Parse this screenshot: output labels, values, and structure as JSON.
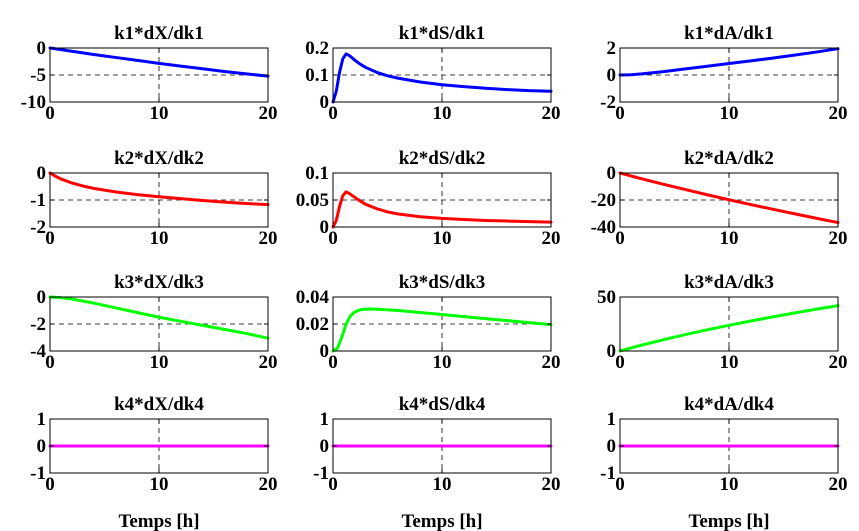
{
  "figure": {
    "x_labels": [
      "Temps [h]",
      "Temps [h]",
      "Temps [h]"
    ]
  },
  "chart_data": [
    {
      "type": "line",
      "title": "k1*dX/dk1",
      "xlabel": "",
      "ylabel": "",
      "xlim": [
        0,
        20
      ],
      "ylim": [
        -10,
        0
      ],
      "xticks": [
        "0",
        "10",
        "20"
      ],
      "yticks": [
        "-10",
        "-5",
        "0"
      ],
      "ytick_values": [
        -10,
        -5,
        0
      ],
      "grid": true,
      "color": "#0000ff",
      "series": [
        {
          "x": [
            0,
            1,
            2,
            4,
            6,
            8,
            10,
            12,
            14,
            16,
            18,
            20
          ],
          "y": [
            0,
            -0.3,
            -0.6,
            -1.2,
            -1.75,
            -2.3,
            -2.85,
            -3.35,
            -3.85,
            -4.35,
            -4.8,
            -5.2
          ]
        }
      ]
    },
    {
      "type": "line",
      "title": "k1*dS/dk1",
      "xlabel": "",
      "ylabel": "",
      "xlim": [
        0,
        20
      ],
      "ylim": [
        0,
        0.2
      ],
      "xticks": [
        "0",
        "10",
        "20"
      ],
      "yticks": [
        "0",
        "0.1",
        "0.2"
      ],
      "ytick_values": [
        0,
        0.1,
        0.2
      ],
      "grid": true,
      "color": "#0000ff",
      "series": [
        {
          "x": [
            0,
            0.3,
            0.6,
            0.9,
            1.2,
            1.5,
            2,
            2.5,
            3,
            4,
            5,
            6,
            8,
            10,
            12,
            14,
            16,
            18,
            20
          ],
          "y": [
            0,
            0.04,
            0.11,
            0.16,
            0.178,
            0.172,
            0.155,
            0.14,
            0.128,
            0.11,
            0.097,
            0.088,
            0.074,
            0.064,
            0.057,
            0.051,
            0.046,
            0.042,
            0.04
          ]
        }
      ]
    },
    {
      "type": "line",
      "title": "k1*dA/dk1",
      "xlabel": "",
      "ylabel": "",
      "xlim": [
        0,
        20
      ],
      "ylim": [
        -2,
        2
      ],
      "xticks": [
        "0",
        "10",
        "20"
      ],
      "yticks": [
        "-2",
        "0",
        "2"
      ],
      "ytick_values": [
        -2,
        0,
        2
      ],
      "grid": true,
      "color": "#0000ff",
      "series": [
        {
          "x": [
            0,
            1,
            2,
            4,
            6,
            8,
            10,
            12,
            14,
            16,
            18,
            20
          ],
          "y": [
            0,
            0.02,
            0.08,
            0.25,
            0.45,
            0.65,
            0.85,
            1.05,
            1.25,
            1.47,
            1.7,
            1.95
          ]
        }
      ]
    },
    {
      "type": "line",
      "title": "k2*dX/dk2",
      "xlabel": "",
      "ylabel": "",
      "xlim": [
        0,
        20
      ],
      "ylim": [
        -2,
        0
      ],
      "xticks": [
        "0",
        "10",
        "20"
      ],
      "yticks": [
        "-2",
        "-1",
        "0"
      ],
      "ytick_values": [
        -2,
        -1,
        0
      ],
      "grid": true,
      "color": "#ff0000",
      "series": [
        {
          "x": [
            0,
            0.5,
            1,
            2,
            3,
            4,
            6,
            8,
            10,
            12,
            14,
            16,
            18,
            20
          ],
          "y": [
            0,
            -0.12,
            -0.22,
            -0.37,
            -0.48,
            -0.57,
            -0.7,
            -0.8,
            -0.88,
            -0.95,
            -1.02,
            -1.08,
            -1.13,
            -1.17
          ]
        }
      ]
    },
    {
      "type": "line",
      "title": "k2*dS/dk2",
      "xlabel": "",
      "ylabel": "",
      "xlim": [
        0,
        20
      ],
      "ylim": [
        0,
        0.1
      ],
      "xticks": [
        "0",
        "10",
        "20"
      ],
      "yticks": [
        "0",
        "0.05",
        "0.1"
      ],
      "ytick_values": [
        0,
        0.05,
        0.1
      ],
      "grid": true,
      "color": "#ff0000",
      "series": [
        {
          "x": [
            0,
            0.3,
            0.6,
            0.9,
            1.2,
            1.5,
            2,
            2.5,
            3,
            4,
            5,
            6,
            8,
            10,
            12,
            14,
            16,
            18,
            20
          ],
          "y": [
            0,
            0.012,
            0.038,
            0.058,
            0.065,
            0.062,
            0.055,
            0.048,
            0.042,
            0.034,
            0.028,
            0.024,
            0.019,
            0.016,
            0.014,
            0.012,
            0.011,
            0.01,
            0.009
          ]
        }
      ]
    },
    {
      "type": "line",
      "title": "k2*dA/dk2",
      "xlabel": "",
      "ylabel": "",
      "xlim": [
        0,
        20
      ],
      "ylim": [
        -40,
        0
      ],
      "xticks": [
        "0",
        "10",
        "20"
      ],
      "yticks": [
        "-40",
        "-20",
        "0"
      ],
      "ytick_values": [
        -40,
        -20,
        0
      ],
      "grid": true,
      "color": "#ff0000",
      "series": [
        {
          "x": [
            0,
            1,
            2,
            4,
            6,
            8,
            10,
            12,
            14,
            16,
            18,
            20
          ],
          "y": [
            0,
            -2.2,
            -4.3,
            -8.4,
            -12.3,
            -16.1,
            -19.8,
            -23.4,
            -26.8,
            -30.2,
            -33.5,
            -36.7
          ]
        }
      ]
    },
    {
      "type": "line",
      "title": "k3*dX/dk3",
      "xlabel": "",
      "ylabel": "",
      "xlim": [
        0,
        20
      ],
      "ylim": [
        -4,
        0
      ],
      "xticks": [
        "0",
        "10",
        "20"
      ],
      "yticks": [
        "-4",
        "-2",
        "0"
      ],
      "ytick_values": [
        -4,
        -2,
        0
      ],
      "grid": true,
      "color": "#00ff00",
      "series": [
        {
          "x": [
            0,
            1,
            2,
            4,
            6,
            8,
            10,
            12,
            14,
            16,
            18,
            20
          ],
          "y": [
            0,
            -0.05,
            -0.15,
            -0.45,
            -0.8,
            -1.15,
            -1.5,
            -1.8,
            -2.1,
            -2.4,
            -2.7,
            -3.05
          ]
        }
      ]
    },
    {
      "type": "line",
      "title": "k3*dS/dk3",
      "xlabel": "",
      "ylabel": "",
      "xlim": [
        0,
        20
      ],
      "ylim": [
        0,
        0.04
      ],
      "xticks": [
        "0",
        "10",
        "20"
      ],
      "yticks": [
        "0",
        "0.02",
        "0.04"
      ],
      "ytick_values": [
        0,
        0.02,
        0.04
      ],
      "grid": true,
      "color": "#00ff00",
      "series": [
        {
          "x": [
            0,
            0.4,
            0.8,
            1.2,
            1.6,
            2,
            2.5,
            3,
            4,
            5,
            6,
            8,
            10,
            12,
            14,
            16,
            18,
            20
          ],
          "y": [
            0,
            0.002,
            0.01,
            0.02,
            0.026,
            0.029,
            0.0305,
            0.031,
            0.031,
            0.0305,
            0.03,
            0.0285,
            0.027,
            0.0255,
            0.024,
            0.0225,
            0.021,
            0.0195
          ]
        }
      ]
    },
    {
      "type": "line",
      "title": "k3*dA/dk3",
      "xlabel": "",
      "ylabel": "",
      "xlim": [
        0,
        20
      ],
      "ylim": [
        0,
        50
      ],
      "xticks": [
        "0",
        "10",
        "20"
      ],
      "yticks": [
        "0",
        "50"
      ],
      "ytick_values": [
        0,
        50
      ],
      "grid": true,
      "color": "#00ff00",
      "series": [
        {
          "x": [
            0,
            1,
            2,
            4,
            6,
            8,
            10,
            12,
            14,
            16,
            18,
            20
          ],
          "y": [
            0,
            2.8,
            5.5,
            10.5,
            15.2,
            19.6,
            23.8,
            27.8,
            31.6,
            35.2,
            38.7,
            42
          ]
        }
      ]
    },
    {
      "type": "line",
      "title": "k4*dX/dk4",
      "xlabel": "",
      "ylabel": "",
      "xlim": [
        0,
        20
      ],
      "ylim": [
        -1,
        1
      ],
      "xticks": [
        "0",
        "10",
        "20"
      ],
      "yticks": [
        "-1",
        "0",
        "1"
      ],
      "ytick_values": [
        -1,
        0,
        1
      ],
      "grid": true,
      "color": "#ff00ff",
      "series": [
        {
          "x": [
            0,
            20
          ],
          "y": [
            0,
            0
          ]
        }
      ]
    },
    {
      "type": "line",
      "title": "k4*dS/dk4",
      "xlabel": "",
      "ylabel": "",
      "xlim": [
        0,
        20
      ],
      "ylim": [
        -1,
        1
      ],
      "xticks": [
        "0",
        "10",
        "20"
      ],
      "yticks": [
        "-1",
        "0",
        "1"
      ],
      "ytick_values": [
        -1,
        0,
        1
      ],
      "grid": true,
      "color": "#ff00ff",
      "series": [
        {
          "x": [
            0,
            20
          ],
          "y": [
            0,
            0
          ]
        }
      ]
    },
    {
      "type": "line",
      "title": "k4*dA/dk4",
      "xlabel": "",
      "ylabel": "",
      "xlim": [
        0,
        20
      ],
      "ylim": [
        -1,
        1
      ],
      "xticks": [
        "0",
        "10",
        "20"
      ],
      "yticks": [
        "-1",
        "0",
        "1"
      ],
      "ytick_values": [
        -1,
        0,
        1
      ],
      "grid": true,
      "color": "#ff00ff",
      "series": [
        {
          "x": [
            0,
            20
          ],
          "y": [
            0,
            0
          ]
        }
      ]
    }
  ]
}
